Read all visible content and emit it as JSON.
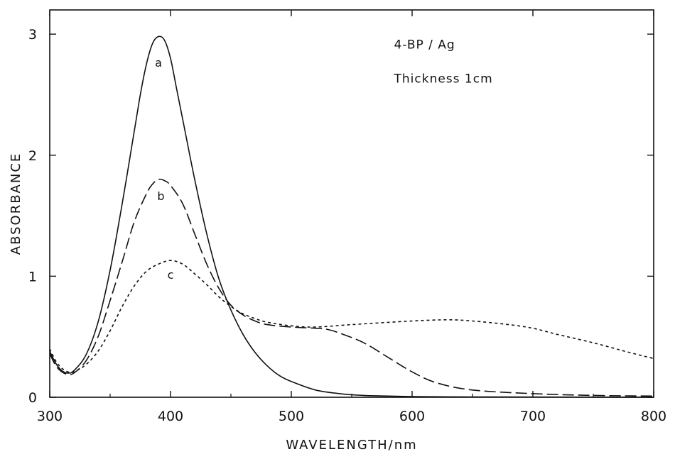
{
  "chart_data": {
    "type": "line",
    "title": "",
    "xlabel": "WAVELENGTH/nm",
    "ylabel": "ABSORBANCE",
    "xlim": [
      300,
      800
    ],
    "ylim": [
      0,
      3.2
    ],
    "xticks": [
      300,
      400,
      500,
      600,
      700,
      800
    ],
    "xtick_labels": [
      "300",
      "400",
      "500",
      "600",
      "700",
      "800"
    ],
    "yticks": [
      0,
      1,
      2,
      3
    ],
    "ytick_labels": [
      "0",
      "1",
      "2",
      "3"
    ],
    "grid": false,
    "annotations": [
      {
        "text": "4-BP / Ag",
        "x": 585,
        "y": 2.88
      },
      {
        "text": "Thickness  1cm",
        "x": 585,
        "y": 2.6
      }
    ],
    "series": [
      {
        "name": "a",
        "label_at": [
          390,
          2.73
        ],
        "style": "solid",
        "x": [
          300,
          305,
          310,
          315,
          320,
          330,
          340,
          350,
          360,
          370,
          375,
          380,
          385,
          390,
          395,
          400,
          405,
          410,
          420,
          430,
          440,
          450,
          460,
          470,
          480,
          490,
          500,
          520,
          540,
          560,
          580,
          600,
          650,
          700,
          800
        ],
        "values": [
          0.38,
          0.28,
          0.22,
          0.2,
          0.22,
          0.35,
          0.62,
          1.05,
          1.6,
          2.2,
          2.5,
          2.75,
          2.92,
          2.98,
          2.95,
          2.8,
          2.55,
          2.3,
          1.8,
          1.35,
          0.98,
          0.72,
          0.52,
          0.37,
          0.26,
          0.18,
          0.13,
          0.06,
          0.03,
          0.015,
          0.01,
          0.006,
          0.003,
          0.002,
          0.0
        ]
      },
      {
        "name": "b",
        "label_at": [
          392,
          1.63
        ],
        "style": "dashed",
        "x": [
          300,
          305,
          310,
          315,
          320,
          330,
          340,
          350,
          360,
          370,
          380,
          385,
          390,
          395,
          400,
          410,
          420,
          430,
          440,
          450,
          460,
          470,
          480,
          500,
          520,
          530,
          540,
          560,
          580,
          600,
          620,
          650,
          700,
          750,
          800
        ],
        "values": [
          0.36,
          0.26,
          0.21,
          0.19,
          0.2,
          0.3,
          0.5,
          0.8,
          1.12,
          1.45,
          1.68,
          1.76,
          1.8,
          1.79,
          1.75,
          1.6,
          1.35,
          1.1,
          0.9,
          0.76,
          0.68,
          0.63,
          0.6,
          0.58,
          0.57,
          0.56,
          0.53,
          0.45,
          0.33,
          0.21,
          0.12,
          0.06,
          0.03,
          0.015,
          0.01
        ]
      },
      {
        "name": "c",
        "label_at": [
          400,
          0.98
        ],
        "style": "dotted",
        "x": [
          300,
          305,
          310,
          315,
          320,
          330,
          340,
          350,
          360,
          370,
          380,
          390,
          400,
          410,
          420,
          430,
          440,
          450,
          460,
          470,
          480,
          500,
          520,
          550,
          600,
          630,
          650,
          680,
          700,
          720,
          750,
          780,
          800
        ],
        "values": [
          0.4,
          0.3,
          0.24,
          0.21,
          0.21,
          0.27,
          0.38,
          0.55,
          0.75,
          0.92,
          1.04,
          1.1,
          1.13,
          1.1,
          1.02,
          0.93,
          0.83,
          0.75,
          0.69,
          0.65,
          0.62,
          0.59,
          0.58,
          0.6,
          0.63,
          0.64,
          0.63,
          0.6,
          0.57,
          0.52,
          0.45,
          0.37,
          0.32
        ]
      }
    ]
  }
}
